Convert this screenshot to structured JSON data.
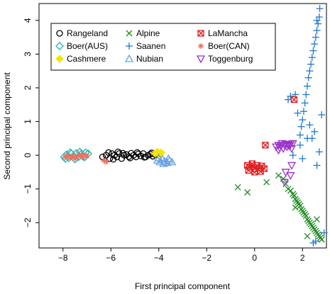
{
  "chart_data": {
    "type": "scatter",
    "title": "",
    "xlabel": "First principal component",
    "ylabel": "Second principal component",
    "xlim": [
      -9,
      3
    ],
    "ylim": [
      -2.75,
      4.5
    ],
    "xticks": [
      -8,
      -6,
      -4,
      -2,
      0,
      2
    ],
    "yticks": [
      -2,
      -1,
      0,
      1,
      2,
      3,
      4
    ],
    "legend_placement": "top-left",
    "grid": false,
    "series": [
      {
        "name": "Rangeland",
        "color": "#000000",
        "marker": "circle",
        "x": [
          -6.35,
          -6.2,
          -6.05,
          -5.95,
          -5.85,
          -5.75,
          -5.65,
          -5.55,
          -5.45,
          -5.35,
          -5.25,
          -5.15,
          -5.05,
          -4.95,
          -4.85,
          -4.75,
          -4.65,
          -4.55,
          -4.45,
          -4.35,
          -4.25,
          -4.15,
          -6.1,
          -5.9,
          -5.7,
          -5.5,
          -5.2,
          -4.9,
          -4.6,
          -4.3
        ],
        "y": [
          -0.05,
          0.0,
          -0.1,
          0.05,
          0.0,
          -0.05,
          0.05,
          -0.1,
          0.0,
          0.02,
          -0.04,
          0.06,
          0.0,
          -0.05,
          0.04,
          -0.02,
          0.05,
          -0.05,
          0.0,
          0.03,
          -0.03,
          0.02,
          0.08,
          -0.12,
          0.1,
          0.06,
          -0.08,
          0.08,
          -0.06,
          0.07
        ]
      },
      {
        "name": "Boer(AUS)",
        "color": "#2ab0b0",
        "marker": "diamond",
        "x": [
          -7.95,
          -7.85,
          -7.75,
          -7.65,
          -7.55,
          -7.45,
          -7.35,
          -7.25,
          -7.15,
          -7.05,
          -6.95,
          -7.9,
          -7.7,
          -7.5,
          -7.3,
          -7.1
        ],
        "y": [
          -0.05,
          0.02,
          -0.08,
          0.05,
          -0.02,
          0.06,
          -0.05,
          0.03,
          -0.04,
          0.08,
          0.05,
          -0.1,
          0.08,
          -0.12,
          0.1,
          -0.06
        ]
      },
      {
        "name": "Cashmere",
        "color": "#f5e600",
        "marker": "diamond-filled",
        "x": [
          -4.15,
          -4.05,
          -3.95,
          -3.9
        ],
        "y": [
          0.05,
          0.1,
          0.02,
          0.08
        ]
      },
      {
        "name": "Alpine",
        "color": "#228b22",
        "marker": "x",
        "x": [
          1.2,
          1.3,
          1.4,
          1.5,
          1.6,
          1.65,
          1.7,
          1.75,
          1.8,
          1.85,
          1.9,
          1.95,
          2.0,
          2.05,
          2.1,
          2.15,
          2.2,
          2.25,
          2.3,
          2.35,
          2.4,
          2.45,
          2.5,
          2.55,
          2.6,
          2.65,
          2.7,
          2.75,
          2.8,
          -0.7,
          -0.3,
          0.5,
          1.0,
          1.7,
          2.2,
          2.6
        ],
        "y": [
          -0.7,
          -0.85,
          -1.0,
          -1.05,
          -1.15,
          -1.2,
          -1.3,
          -1.35,
          -1.4,
          -1.45,
          -1.5,
          -1.6,
          -1.65,
          -1.7,
          -1.75,
          -1.8,
          -1.9,
          -1.95,
          -2.0,
          -2.05,
          -2.1,
          -2.15,
          -2.2,
          -2.25,
          -2.3,
          -2.35,
          -2.4,
          -2.45,
          -2.5,
          -0.95,
          -1.1,
          -0.8,
          -0.6,
          -1.55,
          -2.4,
          -1.9
        ]
      },
      {
        "name": "Saanen",
        "color": "#1f78d0",
        "marker": "plus",
        "x": [
          1.9,
          1.95,
          2.0,
          2.05,
          2.1,
          2.15,
          2.2,
          2.25,
          2.3,
          2.35,
          2.4,
          2.45,
          2.5,
          2.55,
          2.6,
          2.65,
          2.7,
          2.72,
          2.6,
          1.8,
          1.5,
          1.4,
          2.2,
          2.8,
          1.9,
          2.5,
          1.6,
          2.3,
          2.7,
          2.0,
          2.4,
          1.7,
          2.6,
          2.9,
          2.45,
          2.55
        ],
        "y": [
          0.6,
          0.85,
          1.05,
          1.3,
          1.55,
          1.8,
          2.05,
          2.3,
          2.5,
          2.7,
          2.9,
          3.1,
          3.3,
          3.5,
          3.7,
          3.9,
          4.1,
          4.35,
          4.0,
          1.25,
          1.75,
          1.65,
          0.5,
          1.2,
          0.3,
          0.7,
          0.0,
          0.9,
          0.1,
          -0.1,
          0.5,
          1.8,
          -0.3,
          -2.3,
          -2.6,
          -2.55
        ]
      },
      {
        "name": "Nubian",
        "color": "#6aa0e0",
        "marker": "triangle-up",
        "x": [
          -4.05,
          -3.95,
          -3.85,
          -3.75,
          -3.65,
          -3.55,
          -4.0,
          -3.8,
          -3.6,
          -3.45
        ],
        "y": [
          -0.15,
          -0.2,
          -0.12,
          -0.18,
          -0.22,
          -0.15,
          -0.08,
          -0.25,
          -0.1,
          -0.2
        ]
      },
      {
        "name": "LaMancha",
        "color": "#e02020",
        "marker": "square-x",
        "x": [
          -0.3,
          -0.2,
          -0.1,
          0.0,
          0.1,
          0.2,
          0.3,
          0.4,
          -0.25,
          0.0,
          0.25,
          0.45,
          1.65
        ],
        "y": [
          -0.3,
          -0.35,
          -0.25,
          -0.4,
          -0.3,
          -0.38,
          -0.32,
          -0.4,
          -0.45,
          -0.5,
          -0.48,
          0.3,
          1.65
        ]
      },
      {
        "name": "Boer(CAN)",
        "color": "#f07060",
        "marker": "asterisk",
        "x": [
          -7.9,
          -7.8,
          -7.7,
          -7.6,
          -7.5,
          -7.4,
          -7.3,
          -7.2,
          -7.1,
          -7.0,
          -6.3,
          -6.2
        ],
        "y": [
          -0.05,
          0.0,
          -0.08,
          -0.02,
          -0.1,
          -0.04,
          0.02,
          -0.06,
          0.0,
          -0.03,
          -0.15,
          -0.2
        ]
      },
      {
        "name": "Toggenburg",
        "color": "#9932cc",
        "marker": "triangle-down",
        "x": [
          0.9,
          1.0,
          1.05,
          1.1,
          1.15,
          1.2,
          1.25,
          1.3,
          1.35,
          1.4,
          1.45,
          1.5,
          1.55,
          1.6,
          1.0,
          1.3,
          1.5,
          1.55,
          1.25
        ],
        "y": [
          0.25,
          0.3,
          0.22,
          0.28,
          0.35,
          0.2,
          0.3,
          0.33,
          0.25,
          0.3,
          0.28,
          0.32,
          0.2,
          0.35,
          0.15,
          -0.5,
          -0.6,
          -0.3,
          -0.8
        ]
      }
    ]
  }
}
